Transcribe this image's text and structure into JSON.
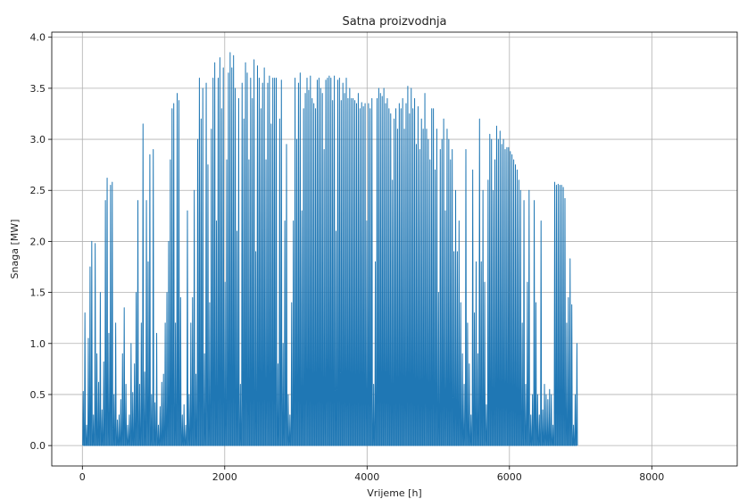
{
  "chart_data": {
    "type": "line",
    "title": "Satna proizvodnja",
    "xlabel": "Vrijeme [h]",
    "ylabel": "Snaga [MW]",
    "xlim": [
      -430,
      9200
    ],
    "ylim": [
      -0.2,
      4.05
    ],
    "xticks": [
      0,
      2000,
      4000,
      6000,
      8000
    ],
    "yticks": [
      0.0,
      0.5,
      1.0,
      1.5,
      2.0,
      2.5,
      3.0,
      3.5,
      4.0
    ],
    "xtick_labels": [
      "0",
      "2000",
      "4000",
      "6000",
      "8000"
    ],
    "ytick_labels": [
      "0.0",
      "0.5",
      "1.0",
      "1.5",
      "2.0",
      "2.5",
      "3.0",
      "3.5",
      "4.0"
    ],
    "grid": true,
    "series": [
      {
        "color": "#1f77b4",
        "sampling": "daily peak value, hour 0 to 8736 (one value per 24 h; line returns to 0 between days)",
        "x_start": 12,
        "x_step": 24,
        "values": [
          0.53,
          1.3,
          0.2,
          1.05,
          1.75,
          2.0,
          0.3,
          1.98,
          0.9,
          0.62,
          1.5,
          0.35,
          0.82,
          2.4,
          2.62,
          1.1,
          2.55,
          2.58,
          0.5,
          1.2,
          0.25,
          0.3,
          0.45,
          0.9,
          1.35,
          0.6,
          0.2,
          0.3,
          1.0,
          0.52,
          0.8,
          1.5,
          2.4,
          0.6,
          1.2,
          3.15,
          0.72,
          2.4,
          1.8,
          2.85,
          0.5,
          2.9,
          0.42,
          1.1,
          0.2,
          0.38,
          0.62,
          0.7,
          1.2,
          1.5,
          2.0,
          2.8,
          3.3,
          3.35,
          1.2,
          3.45,
          3.38,
          1.45,
          0.3,
          0.4,
          0.2,
          2.3,
          0.5,
          1.2,
          1.45,
          2.5,
          0.7,
          3.0,
          3.6,
          3.2,
          3.5,
          0.9,
          3.55,
          2.75,
          1.4,
          3.1,
          3.6,
          3.75,
          2.2,
          3.6,
          3.8,
          3.3,
          3.7,
          1.6,
          2.8,
          3.65,
          3.85,
          3.7,
          3.82,
          3.5,
          2.1,
          3.4,
          0.6,
          3.55,
          3.2,
          3.75,
          3.65,
          2.8,
          3.6,
          3.4,
          3.78,
          1.9,
          3.72,
          3.6,
          3.3,
          3.55,
          3.7,
          2.8,
          3.55,
          3.62,
          3.15,
          3.6,
          3.6,
          3.6,
          0.8,
          3.2,
          3.58,
          1.0,
          2.2,
          2.95,
          0.5,
          0.3,
          1.4,
          2.2,
          3.6,
          3.0,
          3.55,
          3.65,
          2.3,
          3.3,
          3.45,
          3.6,
          3.48,
          3.62,
          3.4,
          3.35,
          3.3,
          3.58,
          3.6,
          3.5,
          3.45,
          2.9,
          3.58,
          3.6,
          3.62,
          3.6,
          3.38,
          3.62,
          2.1,
          3.58,
          3.6,
          3.38,
          3.55,
          3.45,
          3.6,
          3.4,
          3.5,
          3.4,
          3.4,
          3.38,
          3.35,
          3.45,
          3.3,
          3.36,
          3.32,
          3.35,
          2.2,
          3.35,
          3.3,
          3.4,
          0.6,
          1.8,
          3.4,
          3.5,
          3.45,
          3.42,
          3.5,
          3.35,
          3.4,
          3.3,
          3.25,
          2.6,
          3.2,
          3.3,
          3.1,
          3.35,
          3.3,
          3.4,
          3.1,
          3.35,
          3.52,
          3.25,
          3.5,
          3.3,
          3.4,
          2.95,
          3.32,
          2.9,
          3.2,
          3.1,
          3.45,
          3.1,
          3.0,
          2.8,
          3.3,
          3.3,
          2.7,
          3.1,
          1.5,
          2.9,
          3.0,
          3.2,
          2.3,
          3.1,
          3.0,
          2.8,
          2.9,
          1.9,
          2.5,
          1.9,
          2.2,
          1.4,
          0.9,
          0.6,
          2.9,
          1.2,
          0.8,
          0.3,
          2.7,
          1.3,
          1.8,
          0.9,
          3.2,
          1.8,
          2.5,
          1.6,
          0.4,
          2.6,
          3.05,
          3.0,
          2.5,
          2.8,
          3.13,
          3.0,
          3.08,
          2.95,
          3.0,
          2.9,
          2.92,
          2.92,
          2.88,
          2.85,
          2.8,
          2.75,
          2.7,
          2.6,
          2.5,
          1.2,
          2.4,
          0.6,
          1.6,
          2.5,
          0.3,
          0.5,
          2.4,
          1.4,
          0.5,
          0.3,
          2.2,
          0.35,
          0.6,
          0.5,
          0.45,
          0.55,
          0.5,
          0.2,
          2.58,
          2.55,
          2.56,
          2.55,
          2.55,
          2.53,
          2.42,
          1.2,
          1.45,
          1.83,
          1.38,
          0.2,
          0.5,
          1.0
        ]
      }
    ]
  }
}
